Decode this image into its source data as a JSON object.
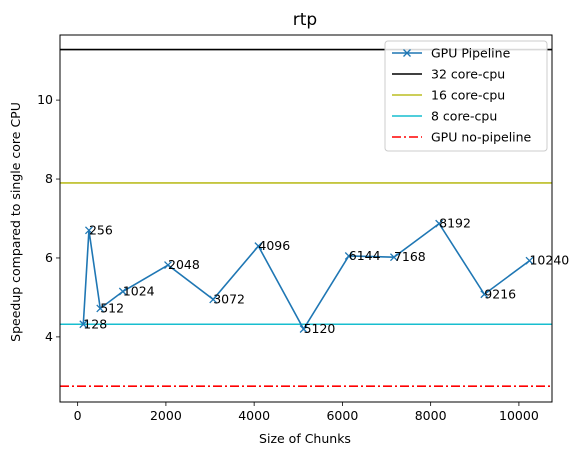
{
  "chart_data": {
    "type": "line",
    "title": "rtp",
    "xlabel": "Size of Chunks",
    "ylabel": "Speedup compared to single core CPU",
    "xlim": [
      -400,
      10750
    ],
    "ylim": [
      2.35,
      11.65
    ],
    "xticks": [
      0,
      2000,
      4000,
      6000,
      8000,
      10000
    ],
    "yticks": [
      4,
      6,
      8,
      10
    ],
    "grid": false,
    "legend_position": "top-right",
    "series": [
      {
        "name": "GPU Pipeline",
        "style": "line-marker-x",
        "color": "#1f77b4",
        "x": [
          128,
          256,
          512,
          1024,
          2048,
          3072,
          4096,
          5120,
          6144,
          7168,
          8192,
          9216,
          10240
        ],
        "y": [
          4.32,
          6.7,
          4.72,
          5.15,
          5.82,
          4.95,
          6.3,
          4.2,
          6.05,
          6.02,
          6.87,
          5.08,
          5.93
        ],
        "point_labels": [
          "128",
          "256",
          "512",
          "1024",
          "2048",
          "3072",
          "4096",
          "5120",
          "6144",
          "7168",
          "8192",
          "9216",
          "10240"
        ]
      },
      {
        "name": "32 core-cpu",
        "style": "hline-solid",
        "color": "#000000",
        "y": 11.28
      },
      {
        "name": "16 core-cpu",
        "style": "hline-solid",
        "color": "#bcbd22",
        "y": 7.9
      },
      {
        "name": "8 core-cpu",
        "style": "hline-solid",
        "color": "#17becf",
        "y": 4.32
      },
      {
        "name": "GPU no-pipeline",
        "style": "hline-dashdot",
        "color": "#ff0000",
        "y": 2.75
      }
    ]
  }
}
